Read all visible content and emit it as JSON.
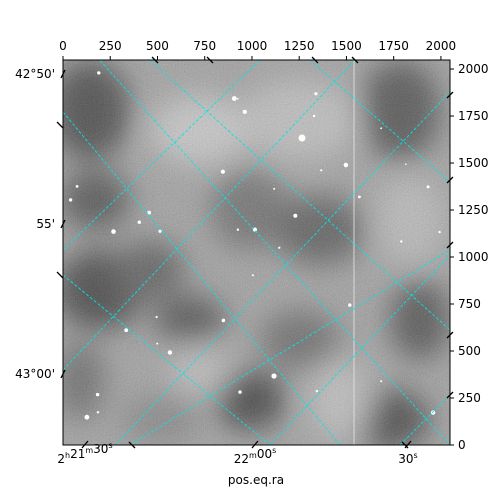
{
  "chart_data": {
    "type": "heatmap",
    "title": "",
    "xlabel": "pos.eq.ra",
    "ylabel": "",
    "pixel_axes": {
      "x_ticks": [
        0,
        250,
        500,
        750,
        1000,
        1250,
        1500,
        1750,
        2000
      ],
      "y_ticks": [
        0,
        250,
        500,
        750,
        1000,
        1250,
        1500,
        1750,
        2000
      ],
      "xlim": [
        0,
        2048
      ],
      "ylim": [
        0,
        2048
      ]
    },
    "world_axes": {
      "ra_ticks": [
        {
          "sup_h": "h",
          "sup_m": "m",
          "sup_s": "s",
          "h": "2",
          "m": "21",
          "s": "30"
        },
        {
          "sup_m": "m",
          "sup_s": "s",
          "m": "22",
          "s": "00"
        },
        {
          "sup_s": "s",
          "s": "30"
        }
      ],
      "dec_ticks": [
        "42°50'",
        "55'",
        "43°00'"
      ]
    },
    "image": {
      "colormap": "gray",
      "description_stars": 40
    },
    "grid": {
      "color": "#00e5e5",
      "style": "dashed",
      "on": true
    }
  }
}
